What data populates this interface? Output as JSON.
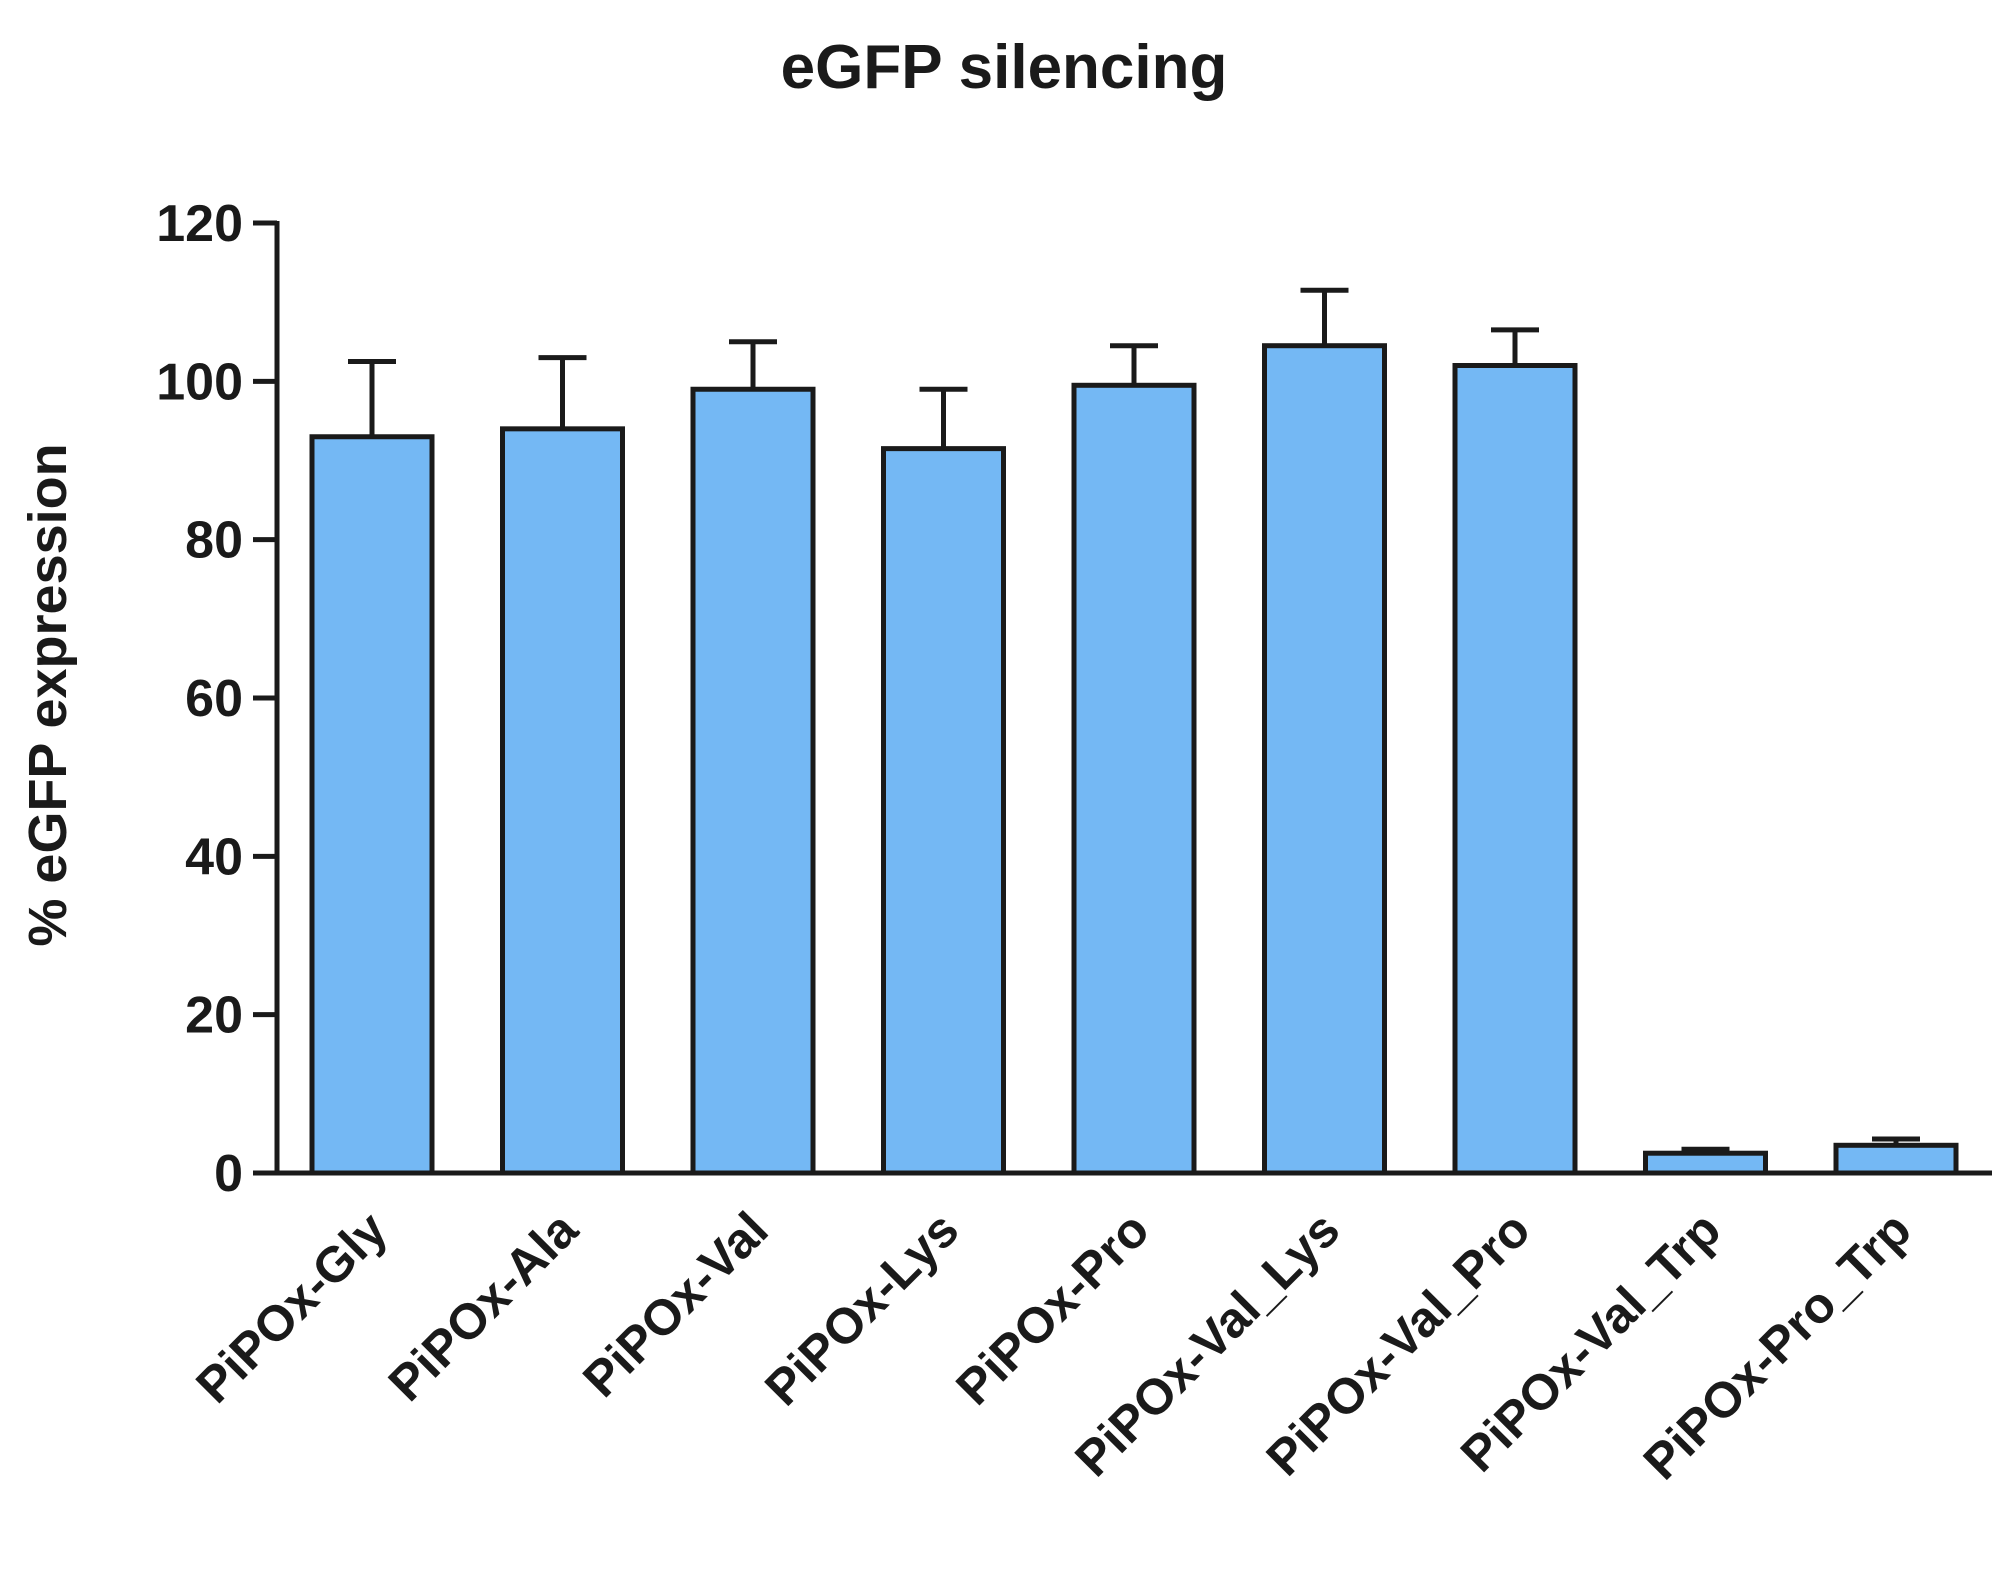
{
  "chart_data": {
    "type": "bar",
    "title": "eGFP silencing",
    "xlabel": "",
    "ylabel": "% eGFP expression",
    "categories": [
      "PiPOx-Gly",
      "PiPOx-Ala",
      "PiPOx-Val",
      "PiPOx-Lys",
      "PiPOx-Pro",
      "PiPOx-Val_Lys",
      "PiPOx-Val_Pro",
      "PiPOx-Val_Trp",
      "PiPOx-Pro_Trp"
    ],
    "values": [
      93,
      94,
      99,
      91.5,
      99.5,
      104.5,
      102,
      2.5,
      3.5
    ],
    "errors": [
      9.5,
      9,
      6,
      7.5,
      5,
      7,
      4.5,
      0.5,
      0.8
    ],
    "ylim": [
      0,
      120
    ],
    "yticks": [
      "0",
      "20",
      "40",
      "60",
      "80",
      "100",
      "120"
    ],
    "ytick_values": [
      0,
      20,
      40,
      60,
      80,
      100,
      120
    ],
    "grid": false,
    "legend": "none",
    "colors": {
      "bar_fill": "#74b8f4",
      "bar_stroke": "#1a1a1a",
      "axis": "#1a1a1a"
    }
  }
}
